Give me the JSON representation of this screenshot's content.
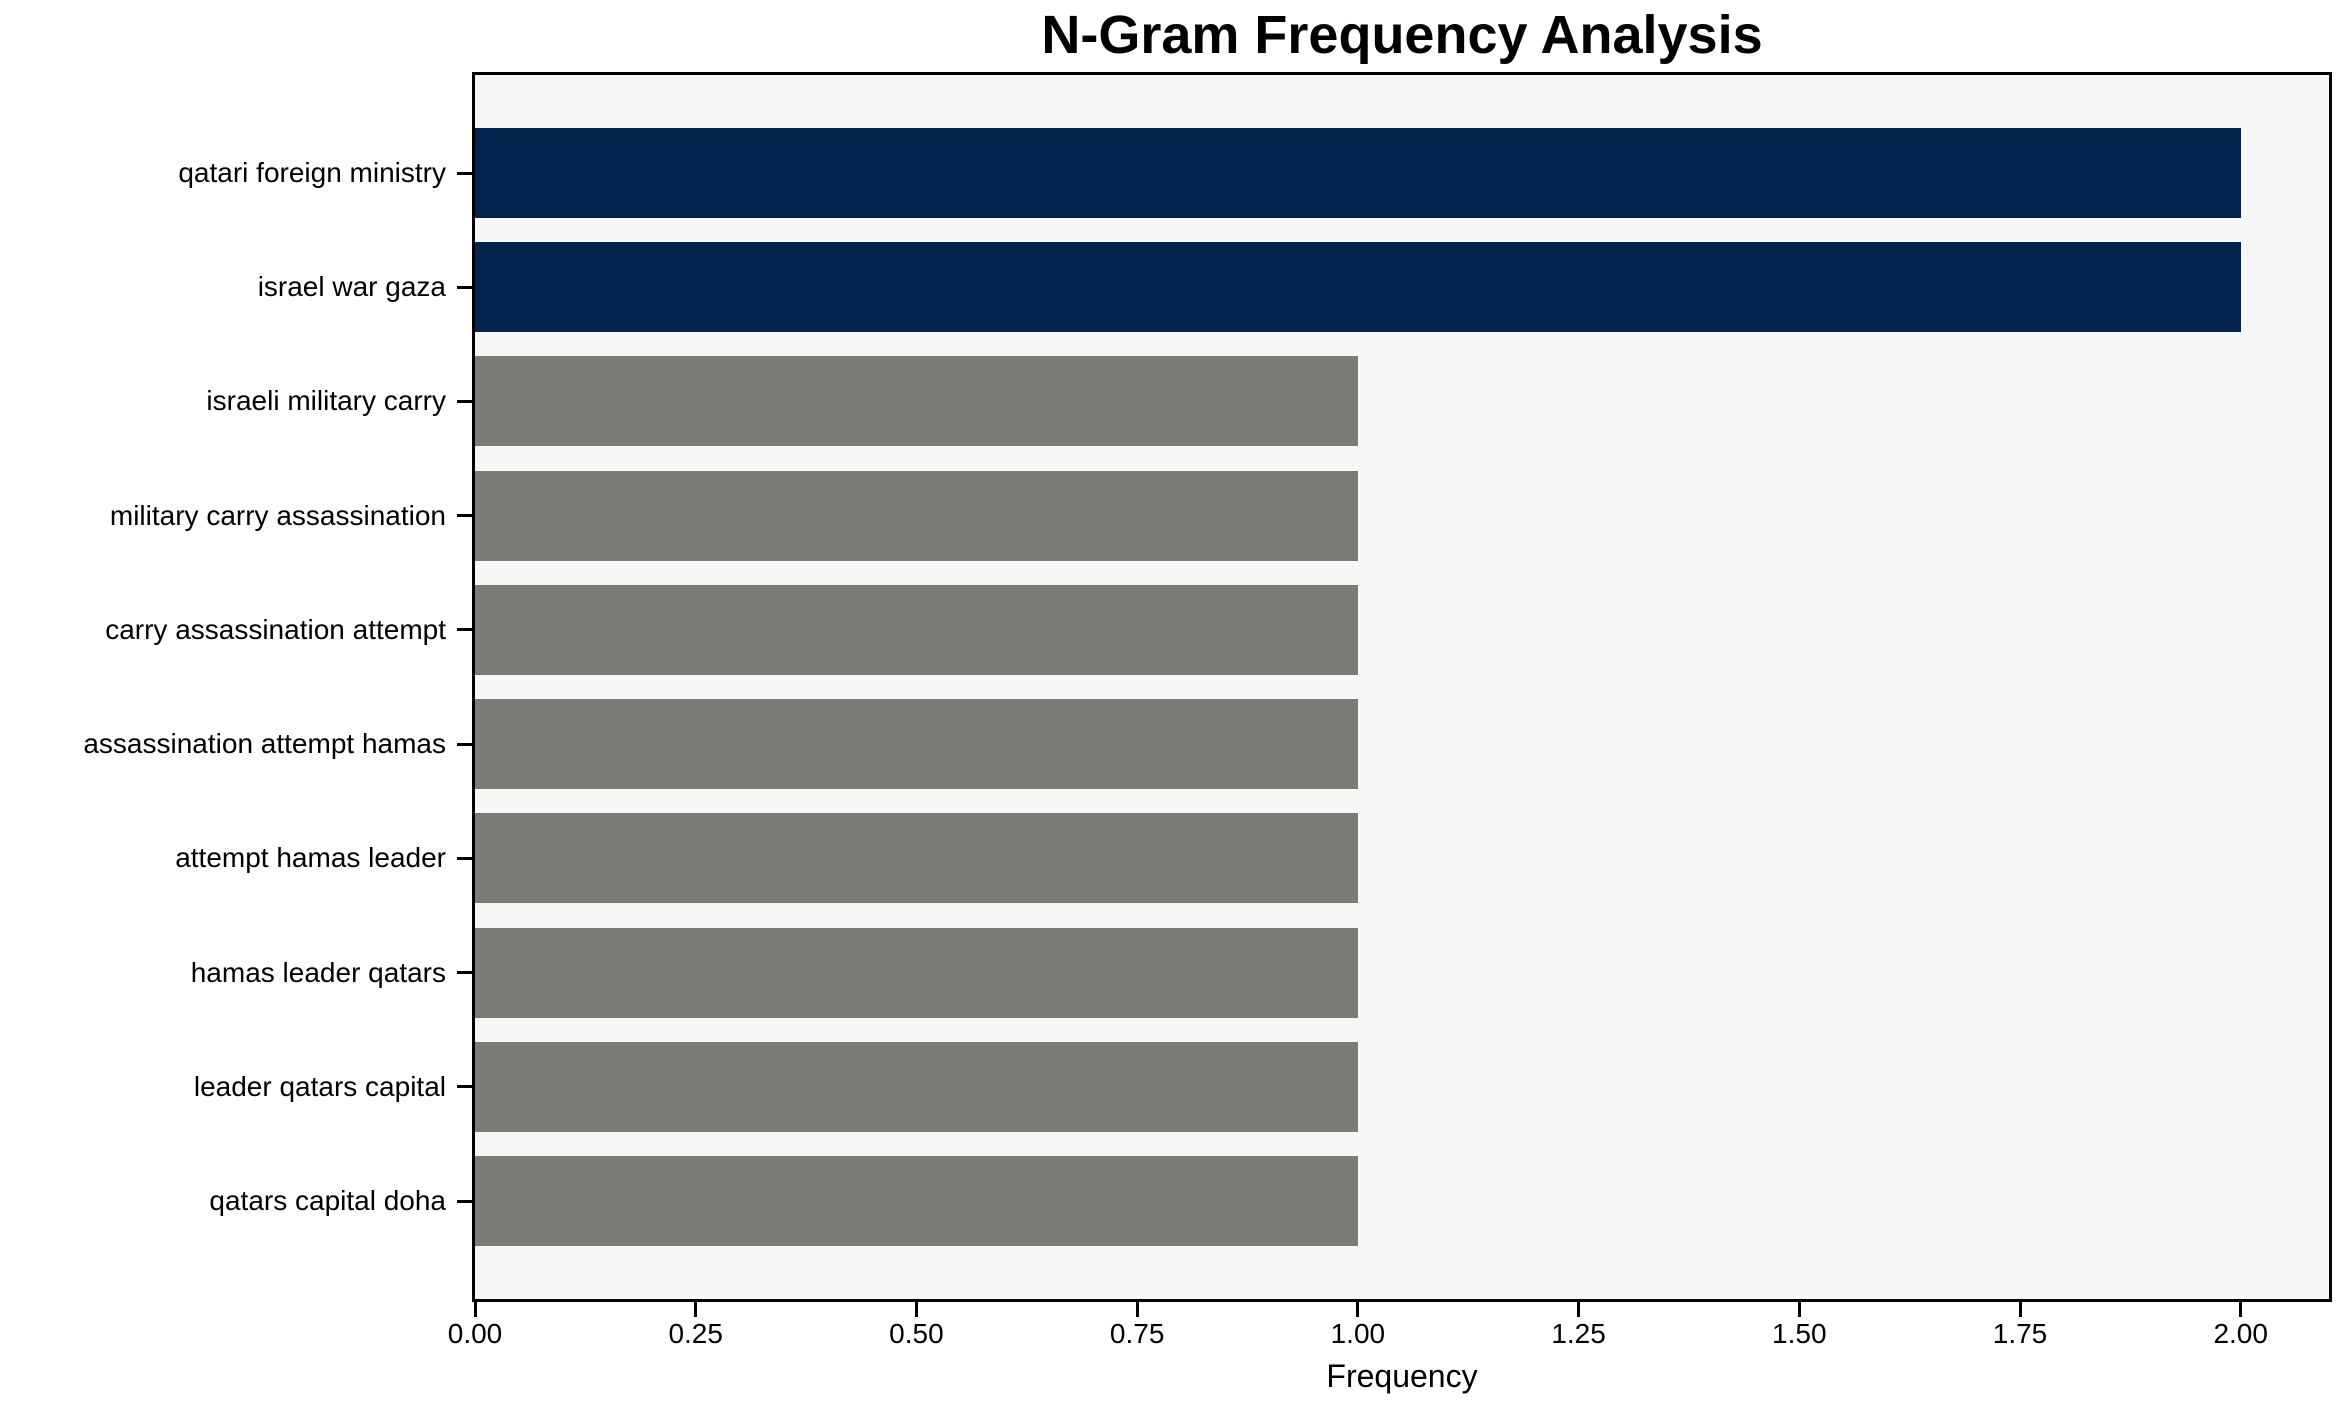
{
  "chart_data": {
    "type": "bar",
    "orientation": "horizontal",
    "title": "N-Gram Frequency Analysis",
    "xlabel": "Frequency",
    "ylabel": "",
    "categories": [
      "qatari foreign ministry",
      "israel war gaza",
      "israeli military carry",
      "military carry assassination",
      "carry assassination attempt",
      "assassination attempt hamas",
      "attempt hamas leader",
      "hamas leader qatars",
      "leader qatars capital",
      "qatars capital doha"
    ],
    "values": [
      2,
      2,
      1,
      1,
      1,
      1,
      1,
      1,
      1,
      1
    ],
    "bar_colors": [
      "#03244e",
      "#03244e",
      "#7b7b78",
      "#7b7b78",
      "#7b7b78",
      "#7b7b78",
      "#7b7b78",
      "#7b7b78",
      "#7b7b78",
      "#7b7b78"
    ],
    "xlim": [
      0,
      2.1
    ],
    "xticks": [
      0.0,
      0.25,
      0.5,
      0.75,
      1.0,
      1.25,
      1.5,
      1.75,
      2.0
    ],
    "xtick_labels": [
      "0.00",
      "0.25",
      "0.50",
      "0.75",
      "1.00",
      "1.25",
      "1.50",
      "1.75",
      "2.00"
    ],
    "grid": false,
    "legend": null,
    "colors": {
      "highlight_bar": "#03244e",
      "default_bar": "#7b7b78",
      "plot_background": "#f7f7f5",
      "figure_background": "#ffffff",
      "text": "#000000"
    }
  }
}
